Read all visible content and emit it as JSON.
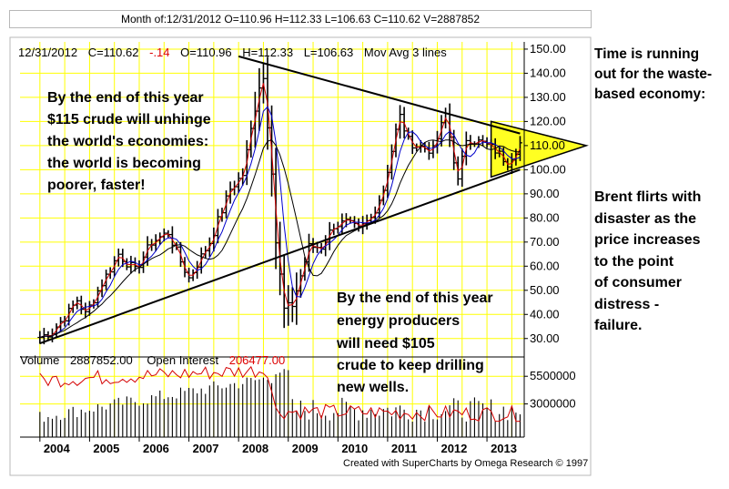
{
  "window_title": "Month of:12/31/2012 O=110.96 H=112.33 L=106.63 C=110.62 V=2887852",
  "price_header": {
    "date": "12/31/2012",
    "close": "C=110.62",
    "change": "-.14",
    "open": "O=110.96",
    "high": "H=112.33",
    "low": "L=106.63",
    "study": "Mov Avg 3 lines"
  },
  "volume_header": {
    "volume_label": "Volume",
    "volume_value": "2887852.00",
    "oi_label": "Open Interest",
    "oi_value": "206477.00"
  },
  "annotations": {
    "unhinge": [
      "By the end of this year",
      "$115 crude will unhinge",
      "the world's economies:",
      "the world is becoming",
      "poorer, faster!"
    ],
    "producers": [
      "By the end of this year",
      "energy producers",
      "will need $105",
      "crude to keep drilling",
      "new wells."
    ]
  },
  "side_notes": {
    "time_running": [
      "Time is running",
      "out for the waste-",
      "based economy:"
    ],
    "brent": [
      "Brent flirts with",
      "disaster as the",
      "price increases",
      "to the point",
      "of consumer",
      "distress -",
      "failure."
    ]
  },
  "footer": "Created with SuperCharts by Omega Research © 1997",
  "colors": {
    "price_bars": "#000000",
    "mov_avg_fast": "#d40000",
    "mov_avg_mid": "#0000cc",
    "mov_avg_slow": "#000000",
    "grid": "#ffff00",
    "wedge_fill": "#ffff22",
    "change_text": "#dd0000",
    "oi_text": "#dd0000",
    "volume_bars": "#000000",
    "open_interest_line": "#d40000"
  },
  "chart_data": {
    "type": "line",
    "subtype": "ohlc-bar",
    "title": "",
    "x_ticks": [
      "2004",
      "2005",
      "2006",
      "2007",
      "2008",
      "2009",
      "2010",
      "2011",
      "2012",
      "2013"
    ],
    "price_axis": {
      "ticks": [
        "30.00",
        "40.00",
        "50.00",
        "60.00",
        "70.00",
        "80.00",
        "90.00",
        "100.00",
        "110.00",
        "120.00",
        "130.00",
        "140.00",
        "150.00"
      ],
      "range": [
        25,
        153
      ]
    },
    "volume_axis": {
      "ticks": [
        "3000000",
        "5500000"
      ],
      "range": [
        0,
        7000000
      ]
    },
    "grid": true,
    "price_anchors": [
      [
        "2004-01",
        30.5
      ],
      [
        "2004-04",
        33
      ],
      [
        "2004-08",
        41
      ],
      [
        "2004-10",
        46
      ],
      [
        "2004-12",
        40
      ],
      [
        "2005-04",
        53
      ],
      [
        "2005-08",
        65
      ],
      [
        "2005-12",
        58
      ],
      [
        "2006-04",
        70
      ],
      [
        "2006-08",
        74
      ],
      [
        "2006-11",
        62
      ],
      [
        "2007-01",
        55
      ],
      [
        "2007-06",
        70
      ],
      [
        "2007-11",
        92
      ],
      [
        "2008-02",
        98
      ],
      [
        "2008-06",
        135
      ],
      [
        "2008-07",
        138
      ],
      [
        "2008-09",
        100
      ],
      [
        "2008-10",
        70
      ],
      [
        "2008-12",
        42
      ],
      [
        "2009-02",
        44
      ],
      [
        "2009-06",
        68
      ],
      [
        "2009-09",
        68
      ],
      [
        "2009-12",
        77
      ],
      [
        "2010-03",
        78
      ],
      [
        "2010-06",
        75
      ],
      [
        "2010-09",
        80
      ],
      [
        "2010-12",
        92
      ],
      [
        "2011-03",
        116
      ],
      [
        "2011-04",
        122
      ],
      [
        "2011-06",
        112
      ],
      [
        "2011-08",
        110
      ],
      [
        "2011-12",
        108
      ],
      [
        "2012-03",
        123
      ],
      [
        "2012-06",
        95
      ],
      [
        "2012-08",
        113
      ],
      [
        "2012-12",
        111
      ],
      [
        "2013-03",
        108
      ],
      [
        "2013-06",
        103
      ],
      [
        "2013-09",
        111
      ]
    ],
    "open_interest_anchors": [
      [
        "2004-01",
        22
      ],
      [
        "2008-08",
        26
      ],
      [
        "2008-10",
        10
      ],
      [
        "2013-09",
        9
      ]
    ],
    "trend_lines": [
      {
        "name": "upper",
        "from": [
          "2008-01",
          147
        ],
        "to": [
          "2013-09",
          115
        ]
      },
      {
        "name": "lower",
        "from": [
          "2004-01",
          28
        ],
        "to": [
          "2013-09",
          100
        ]
      }
    ],
    "wedge": {
      "apex": [
        "2015-01",
        110
      ],
      "upper_edge": [
        "2013-02",
        120
      ],
      "lower_edge": [
        "2013-02",
        97
      ]
    }
  }
}
